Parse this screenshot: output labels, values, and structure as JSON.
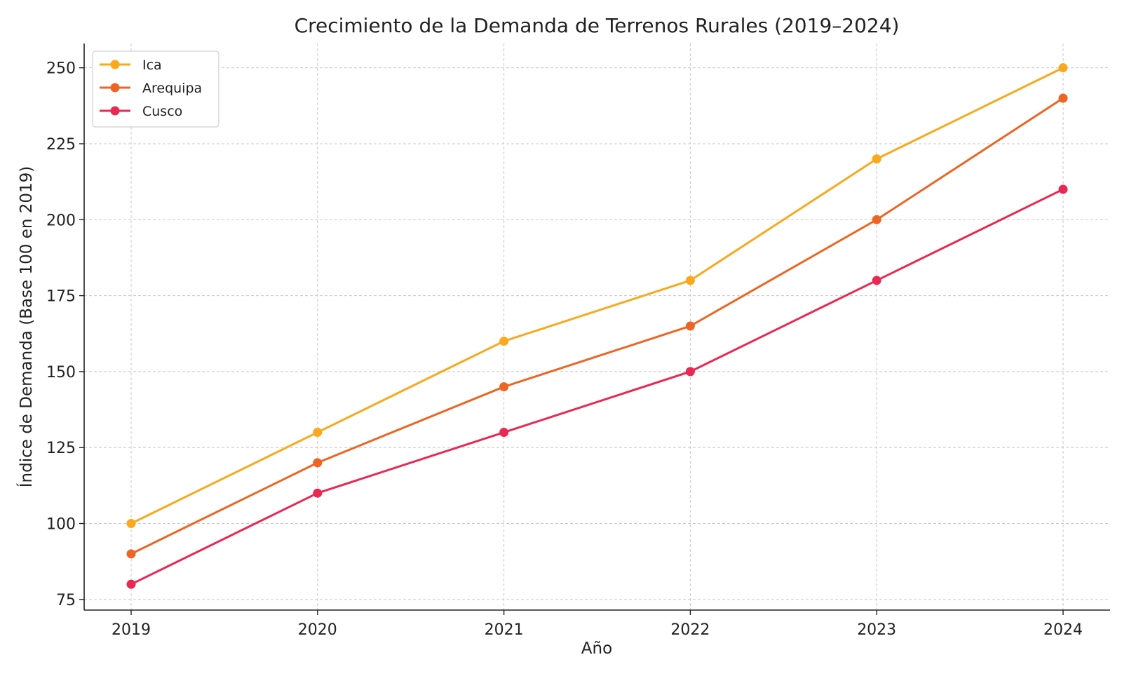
{
  "chart_data": {
    "type": "line",
    "title": "Crecimiento de la Demanda de Terrenos Rurales (2019–2024)",
    "xlabel": "Año",
    "ylabel": "Índice de Demanda (Base 100 en 2019)",
    "categories": [
      "2019",
      "2020",
      "2021",
      "2022",
      "2023",
      "2024"
    ],
    "yticks": [
      75,
      100,
      125,
      150,
      175,
      200,
      225,
      250
    ],
    "ylim": [
      71.5,
      258
    ],
    "grid": true,
    "legend_position": "top-left",
    "series": [
      {
        "name": "Ica",
        "color": "#f9a91b",
        "values": [
          100,
          130,
          160,
          180,
          220,
          250
        ]
      },
      {
        "name": "Arequipa",
        "color": "#ec6524",
        "values": [
          90,
          120,
          145,
          165,
          200,
          240
        ]
      },
      {
        "name": "Cusco",
        "color": "#e92853",
        "values": [
          80,
          110,
          130,
          150,
          180,
          210
        ]
      }
    ]
  }
}
